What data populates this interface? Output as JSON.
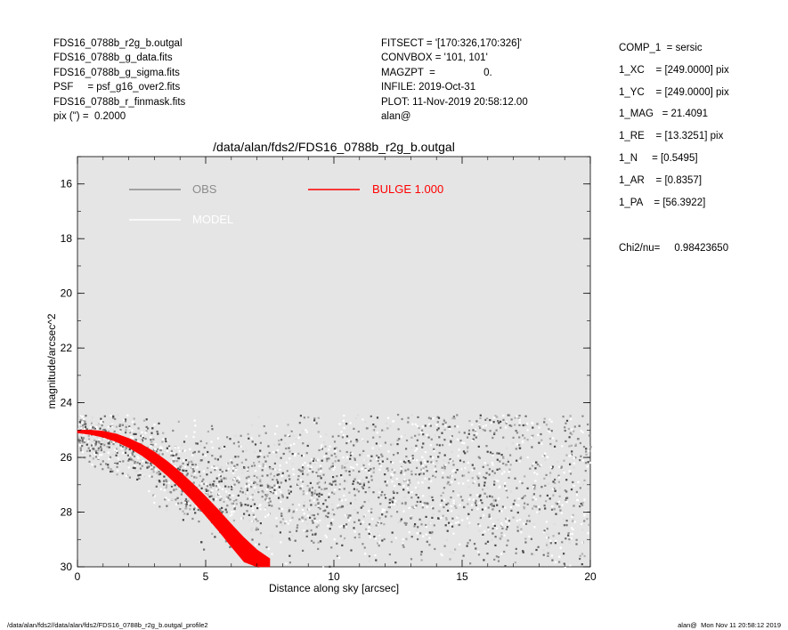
{
  "header_left": [
    "FDS16_0788b_r2g_b.outgal",
    "FDS16_0788b_g_data.fits",
    "FDS16_0788b_g_sigma.fits",
    "PSF     = psf_g16_over2.fits",
    "FDS16_0788b_r_finmask.fits",
    "pix (\") =  0.2000"
  ],
  "header_middle": [
    "FITSECT = '[170:326,170:326]'",
    "CONVBOX = '101, 101'",
    "MAGZPT  =                 0.",
    "INFILE: 2019-Oct-31",
    "PLOT: 11-Nov-2019 20:58:12.00",
    "alan@"
  ],
  "params": [
    "COMP_1  = sersic",
    "1_XC    = [249.0000] pix",
    "1_YC    = [249.0000] pix",
    "1_MAG   = 21.4091",
    "1_RE    = [13.3251] pix",
    "1_N     = [0.5495]",
    "1_AR    = [0.8357]",
    "1_PA    = [56.3922]"
  ],
  "chi2": {
    "label": "Chi2/nu=",
    "value": "0.98423650"
  },
  "footer": {
    "left": "/data/alan/fds2//data/alan/fds2/FDS16_0788b_r2g_b.outgal_profile2",
    "right": "alan@  Mon Nov 11 20:58:12 2019"
  },
  "colors": {
    "plot_bg": "#e5e5e5",
    "obs": "#8c8c8c",
    "model": "#ffffff",
    "bulge": "#ff0000"
  },
  "chart_data": {
    "type": "scatter",
    "title": "/data/alan/fds2/FDS16_0788b_r2g_b.outgal",
    "xlabel": "Distance along sky [arcsec]",
    "ylabel": "magnitude/arcsec^2",
    "xlim": [
      0,
      20
    ],
    "ylim": [
      30,
      15
    ],
    "x_ticks": [
      0,
      5,
      10,
      15,
      20
    ],
    "y_ticks": [
      16,
      18,
      20,
      22,
      24,
      26,
      28,
      30
    ],
    "legend": [
      {
        "label": "OBS",
        "color": "#8c8c8c"
      },
      {
        "label": "MODEL",
        "color": "#ffffff"
      },
      {
        "label": "BULGE  1.000",
        "color": "#ff0000"
      }
    ],
    "series": [
      {
        "name": "OBS",
        "description_points": [
          [
            0,
            25.0
          ],
          [
            1,
            25.3
          ],
          [
            2,
            25.6
          ],
          [
            3,
            26.1
          ],
          [
            4,
            26.6
          ],
          [
            5,
            27.0
          ],
          [
            6,
            27.2
          ],
          [
            8,
            27.1
          ],
          [
            10,
            27.0
          ],
          [
            12,
            26.9
          ],
          [
            14,
            26.8
          ],
          [
            16,
            27.0
          ],
          [
            18,
            27.4
          ],
          [
            20,
            27.8
          ]
        ]
      },
      {
        "name": "BULGE  1.000",
        "x": [
          0,
          0.5,
          1,
          1.5,
          2,
          2.5,
          3,
          3.5,
          4,
          4.5,
          5,
          5.5,
          6,
          6.5,
          7,
          7.5
        ],
        "y": [
          25.05,
          25.08,
          25.15,
          25.28,
          25.47,
          25.72,
          26.03,
          26.4,
          26.82,
          27.28,
          27.78,
          28.3,
          28.85,
          29.38,
          29.85,
          30.2
        ]
      }
    ]
  }
}
